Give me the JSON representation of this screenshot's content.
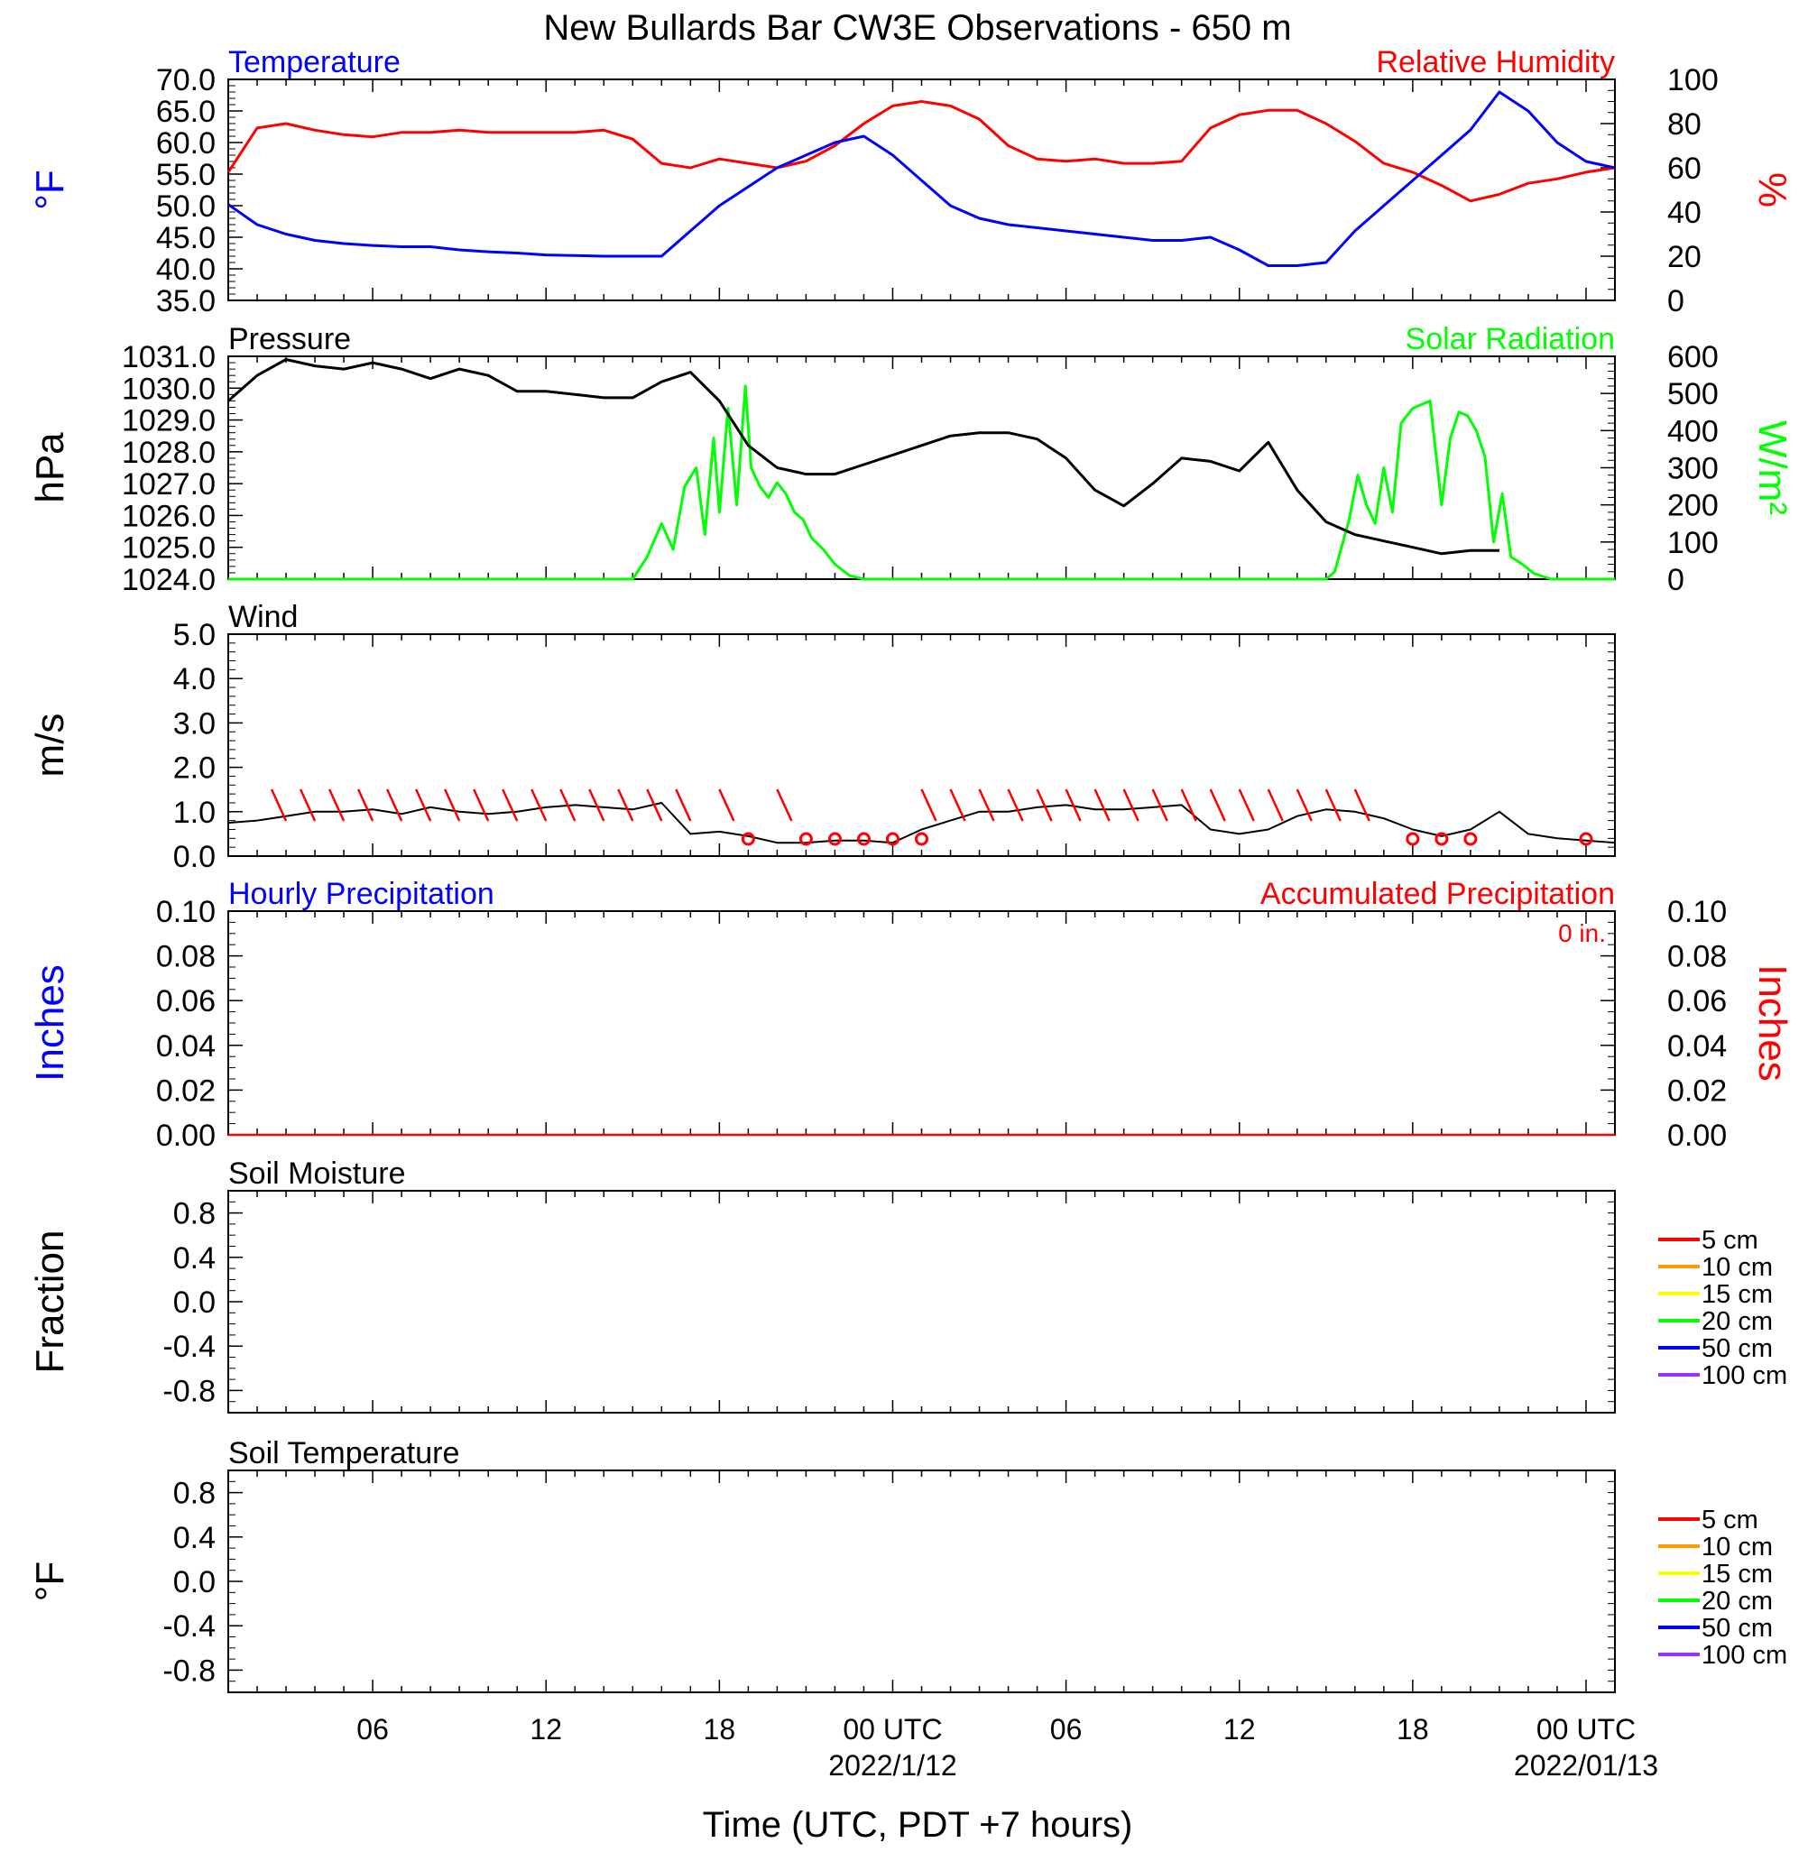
{
  "chart_data": {
    "type": "line",
    "title": "New Bullards Bar CW3E Observations - 650 m",
    "xlabel": "Time (UTC, PDT +7 hours)",
    "x_range_hours": [
      0,
      48
    ],
    "x_ticks": [
      {
        "h": 5,
        "label": "06",
        "date": ""
      },
      {
        "h": 11,
        "label": "12",
        "date": ""
      },
      {
        "h": 17,
        "label": "18",
        "date": ""
      },
      {
        "h": 23,
        "label": "00 UTC",
        "date": "2022/1/12"
      },
      {
        "h": 29,
        "label": "06",
        "date": ""
      },
      {
        "h": 35,
        "label": "12",
        "date": ""
      },
      {
        "h": 41,
        "label": "18",
        "date": ""
      },
      {
        "h": 47,
        "label": "00 UTC",
        "date": "2022/01/13"
      }
    ],
    "colors": {
      "blue": "#0000ff",
      "red": "#ff0000",
      "green": "#00ff00",
      "black": "#000000",
      "orange": "#ff9900",
      "yellow": "#ffff00",
      "purple": "#9933ff"
    },
    "panels": {
      "temperature": {
        "left_title": "Temperature",
        "right_title": "Relative Humidity",
        "left_unit": "°F",
        "right_unit": "%",
        "left_ylim": [
          35,
          70
        ],
        "right_ylim": [
          0,
          100
        ],
        "left_ticks": [
          "35.0",
          "40.0",
          "45.0",
          "50.0",
          "55.0",
          "60.0",
          "65.0",
          "70.0"
        ],
        "right_ticks": [
          "0",
          "20",
          "40",
          "60",
          "80",
          "100"
        ],
        "temperature_series": [
          [
            0,
            50.2
          ],
          [
            1,
            47
          ],
          [
            2,
            45.5
          ],
          [
            3,
            44.5
          ],
          [
            4,
            44
          ],
          [
            5,
            43.7
          ],
          [
            6,
            43.5
          ],
          [
            7,
            43.5
          ],
          [
            8,
            43
          ],
          [
            9,
            42.7
          ],
          [
            10,
            42.5
          ],
          [
            11,
            42.2
          ],
          [
            12,
            42.1
          ],
          [
            13,
            42
          ],
          [
            14,
            42
          ],
          [
            15,
            42
          ],
          [
            16,
            46
          ],
          [
            17,
            50
          ],
          [
            18,
            53
          ],
          [
            19,
            56
          ],
          [
            20,
            58
          ],
          [
            21,
            60
          ],
          [
            22,
            61
          ],
          [
            23,
            58
          ],
          [
            24,
            54
          ],
          [
            25,
            50
          ],
          [
            26,
            48
          ],
          [
            27,
            47
          ],
          [
            28,
            46.5
          ],
          [
            29,
            46
          ],
          [
            30,
            45.5
          ],
          [
            31,
            45
          ],
          [
            32,
            44.5
          ],
          [
            33,
            44.5
          ],
          [
            34,
            45
          ],
          [
            35,
            43
          ],
          [
            36,
            40.5
          ],
          [
            37,
            40.5
          ],
          [
            38,
            41
          ],
          [
            39,
            46
          ],
          [
            40,
            50
          ],
          [
            41,
            54
          ],
          [
            42,
            58
          ],
          [
            43,
            62
          ],
          [
            44,
            68
          ],
          [
            45,
            65
          ],
          [
            46,
            60
          ],
          [
            47,
            57
          ],
          [
            48,
            56
          ]
        ],
        "humidity_series": [
          [
            0,
            58
          ],
          [
            1,
            78
          ],
          [
            2,
            80
          ],
          [
            3,
            77
          ],
          [
            4,
            75
          ],
          [
            5,
            74
          ],
          [
            6,
            76
          ],
          [
            7,
            76
          ],
          [
            8,
            77
          ],
          [
            9,
            76
          ],
          [
            10,
            76
          ],
          [
            11,
            76
          ],
          [
            12,
            76
          ],
          [
            13,
            77
          ],
          [
            14,
            73
          ],
          [
            15,
            62
          ],
          [
            16,
            60
          ],
          [
            17,
            64
          ],
          [
            18,
            62
          ],
          [
            19,
            60
          ],
          [
            20,
            63
          ],
          [
            21,
            70
          ],
          [
            22,
            80
          ],
          [
            23,
            88
          ],
          [
            24,
            90
          ],
          [
            25,
            88
          ],
          [
            26,
            82
          ],
          [
            27,
            70
          ],
          [
            28,
            64
          ],
          [
            29,
            63
          ],
          [
            30,
            64
          ],
          [
            31,
            62
          ],
          [
            32,
            62
          ],
          [
            33,
            63
          ],
          [
            34,
            78
          ],
          [
            35,
            84
          ],
          [
            36,
            86
          ],
          [
            37,
            86
          ],
          [
            38,
            80
          ],
          [
            39,
            72
          ],
          [
            40,
            62
          ],
          [
            41,
            58
          ],
          [
            42,
            52
          ],
          [
            43,
            45
          ],
          [
            44,
            48
          ],
          [
            45,
            53
          ],
          [
            46,
            55
          ],
          [
            47,
            58
          ],
          [
            48,
            60
          ]
        ]
      },
      "pressure": {
        "left_title": "Pressure",
        "right_title": "Solar Radiation",
        "left_unit": "hPa",
        "right_unit": "W/m²",
        "left_ylim": [
          1024,
          1031
        ],
        "right_ylim": [
          0,
          600
        ],
        "left_ticks": [
          "1024.0",
          "1025.0",
          "1026.0",
          "1027.0",
          "1028.0",
          "1029.0",
          "1030.0",
          "1031.0"
        ],
        "right_ticks": [
          "0",
          "100",
          "200",
          "300",
          "400",
          "500",
          "600"
        ],
        "pressure_series": [
          [
            0,
            1029.6
          ],
          [
            1,
            1030.4
          ],
          [
            2,
            1030.9
          ],
          [
            3,
            1030.7
          ],
          [
            4,
            1030.6
          ],
          [
            5,
            1030.8
          ],
          [
            6,
            1030.6
          ],
          [
            7,
            1030.3
          ],
          [
            8,
            1030.6
          ],
          [
            9,
            1030.4
          ],
          [
            10,
            1029.9
          ],
          [
            11,
            1029.9
          ],
          [
            12,
            1029.8
          ],
          [
            13,
            1029.7
          ],
          [
            14,
            1029.7
          ],
          [
            15,
            1030.2
          ],
          [
            16,
            1030.5
          ],
          [
            17,
            1029.6
          ],
          [
            18,
            1028.2
          ],
          [
            19,
            1027.5
          ],
          [
            20,
            1027.3
          ],
          [
            21,
            1027.3
          ],
          [
            22,
            1027.6
          ],
          [
            23,
            1027.9
          ],
          [
            24,
            1028.2
          ],
          [
            25,
            1028.5
          ],
          [
            26,
            1028.6
          ],
          [
            27,
            1028.6
          ],
          [
            28,
            1028.4
          ],
          [
            29,
            1027.8
          ],
          [
            30,
            1026.8
          ],
          [
            31,
            1026.3
          ],
          [
            32,
            1027.0
          ],
          [
            33,
            1027.8
          ],
          [
            34,
            1027.7
          ],
          [
            35,
            1027.4
          ],
          [
            36,
            1028.3
          ],
          [
            37,
            1026.8
          ],
          [
            38,
            1025.8
          ],
          [
            39,
            1025.4
          ],
          [
            40,
            1025.2
          ],
          [
            41,
            1025.0
          ],
          [
            42,
            1024.8
          ],
          [
            43,
            1024.9
          ],
          [
            44,
            1024.9
          ]
        ],
        "solar_series": [
          [
            0,
            0
          ],
          [
            14,
            0
          ],
          [
            14.5,
            60
          ],
          [
            15,
            150
          ],
          [
            15.4,
            80
          ],
          [
            15.8,
            250
          ],
          [
            16.2,
            300
          ],
          [
            16.5,
            120
          ],
          [
            16.8,
            380
          ],
          [
            17,
            180
          ],
          [
            17.3,
            460
          ],
          [
            17.6,
            200
          ],
          [
            17.9,
            520
          ],
          [
            18.1,
            300
          ],
          [
            18.4,
            250
          ],
          [
            18.7,
            220
          ],
          [
            19,
            260
          ],
          [
            19.3,
            230
          ],
          [
            19.6,
            180
          ],
          [
            19.9,
            160
          ],
          [
            20.2,
            110
          ],
          [
            20.6,
            80
          ],
          [
            21,
            40
          ],
          [
            21.5,
            10
          ],
          [
            22,
            0
          ],
          [
            38,
            0
          ],
          [
            38.3,
            20
          ],
          [
            38.8,
            160
          ],
          [
            39.1,
            280
          ],
          [
            39.4,
            200
          ],
          [
            39.7,
            150
          ],
          [
            40,
            300
          ],
          [
            40.3,
            180
          ],
          [
            40.6,
            420
          ],
          [
            41,
            460
          ],
          [
            41.3,
            470
          ],
          [
            41.6,
            480
          ],
          [
            42,
            200
          ],
          [
            42.3,
            380
          ],
          [
            42.6,
            450
          ],
          [
            42.9,
            440
          ],
          [
            43.2,
            400
          ],
          [
            43.5,
            330
          ],
          [
            43.8,
            100
          ],
          [
            44.1,
            230
          ],
          [
            44.4,
            60
          ],
          [
            44.8,
            40
          ],
          [
            45.2,
            15
          ],
          [
            45.8,
            0
          ],
          [
            48,
            0
          ]
        ]
      },
      "wind": {
        "title": "Wind",
        "unit": "m/s",
        "ylim": [
          0,
          5
        ],
        "ticks": [
          "0.0",
          "1.0",
          "2.0",
          "3.0",
          "4.0",
          "5.0"
        ],
        "speed_series": [
          [
            0,
            0.75
          ],
          [
            1,
            0.8
          ],
          [
            2,
            0.9
          ],
          [
            3,
            1.0
          ],
          [
            4,
            1.0
          ],
          [
            5,
            1.05
          ],
          [
            6,
            0.95
          ],
          [
            7,
            1.1
          ],
          [
            8,
            1.0
          ],
          [
            9,
            0.95
          ],
          [
            10,
            1.0
          ],
          [
            11,
            1.1
          ],
          [
            12,
            1.15
          ],
          [
            13,
            1.1
          ],
          [
            14,
            1.05
          ],
          [
            15,
            1.2
          ],
          [
            16,
            0.5
          ],
          [
            17,
            0.55
          ],
          [
            18,
            0.45
          ],
          [
            19,
            0.3
          ],
          [
            20,
            0.3
          ],
          [
            21,
            0.35
          ],
          [
            22,
            0.35
          ],
          [
            23,
            0.3
          ],
          [
            24,
            0.6
          ],
          [
            25,
            0.8
          ],
          [
            26,
            1.0
          ],
          [
            27,
            1.0
          ],
          [
            28,
            1.1
          ],
          [
            29,
            1.15
          ],
          [
            30,
            1.05
          ],
          [
            31,
            1.05
          ],
          [
            32,
            1.1
          ],
          [
            33,
            1.15
          ],
          [
            34,
            0.6
          ],
          [
            35,
            0.5
          ],
          [
            36,
            0.6
          ],
          [
            37,
            0.9
          ],
          [
            38,
            1.05
          ],
          [
            39,
            1.0
          ],
          [
            40,
            0.85
          ],
          [
            41,
            0.6
          ],
          [
            42,
            0.45
          ],
          [
            43,
            0.6
          ],
          [
            44,
            1.0
          ],
          [
            45,
            0.5
          ],
          [
            46,
            0.4
          ],
          [
            47,
            0.35
          ],
          [
            48,
            0.3
          ]
        ],
        "barbs_hours": [
          1.5,
          2.5,
          3.5,
          4.5,
          5.5,
          6.5,
          7.5,
          8.5,
          9.5,
          10.5,
          11.5,
          12.5,
          13.5,
          14.5,
          15.5,
          17,
          19,
          24,
          25,
          26,
          27,
          28,
          29,
          30,
          31,
          32,
          33,
          34,
          35,
          36,
          37,
          38,
          39
        ],
        "calm_hours": [
          18,
          20,
          21,
          22,
          23,
          24,
          41,
          42,
          43,
          47
        ]
      },
      "precipitation": {
        "left_title": "Hourly Precipitation",
        "right_title": "Accumulated Precipitation",
        "accum_label": "0 in.",
        "left_unit": "Inches",
        "right_unit": "Inches",
        "ylim": [
          0,
          0.1
        ],
        "ticks": [
          "0.00",
          "0.02",
          "0.04",
          "0.06",
          "0.08",
          "0.10"
        ],
        "hourly_values": [],
        "accumulated": 0
      },
      "soil_moisture": {
        "title": "Soil Moisture",
        "unit": "Fraction",
        "ylim": [
          -1,
          1
        ],
        "ticks": [
          "-0.8",
          "-0.4",
          "0.0",
          "0.4",
          "0.8"
        ],
        "legend": [
          {
            "name": "5 cm",
            "color": "#ff0000"
          },
          {
            "name": "10 cm",
            "color": "#ff9900"
          },
          {
            "name": "15 cm",
            "color": "#ffff00"
          },
          {
            "name": "20 cm",
            "color": "#00ff00"
          },
          {
            "name": "50 cm",
            "color": "#0000ff"
          },
          {
            "name": "100 cm",
            "color": "#9933ff"
          }
        ]
      },
      "soil_temperature": {
        "title": "Soil Temperature",
        "unit": "°F",
        "ylim": [
          -1,
          1
        ],
        "ticks": [
          "-0.8",
          "-0.4",
          "0.0",
          "0.4",
          "0.8"
        ],
        "legend": [
          {
            "name": "5 cm",
            "color": "#ff0000"
          },
          {
            "name": "10 cm",
            "color": "#ff9900"
          },
          {
            "name": "15 cm",
            "color": "#ffff00"
          },
          {
            "name": "20 cm",
            "color": "#00ff00"
          },
          {
            "name": "50 cm",
            "color": "#0000ff"
          },
          {
            "name": "100 cm",
            "color": "#9933ff"
          }
        ]
      }
    }
  }
}
